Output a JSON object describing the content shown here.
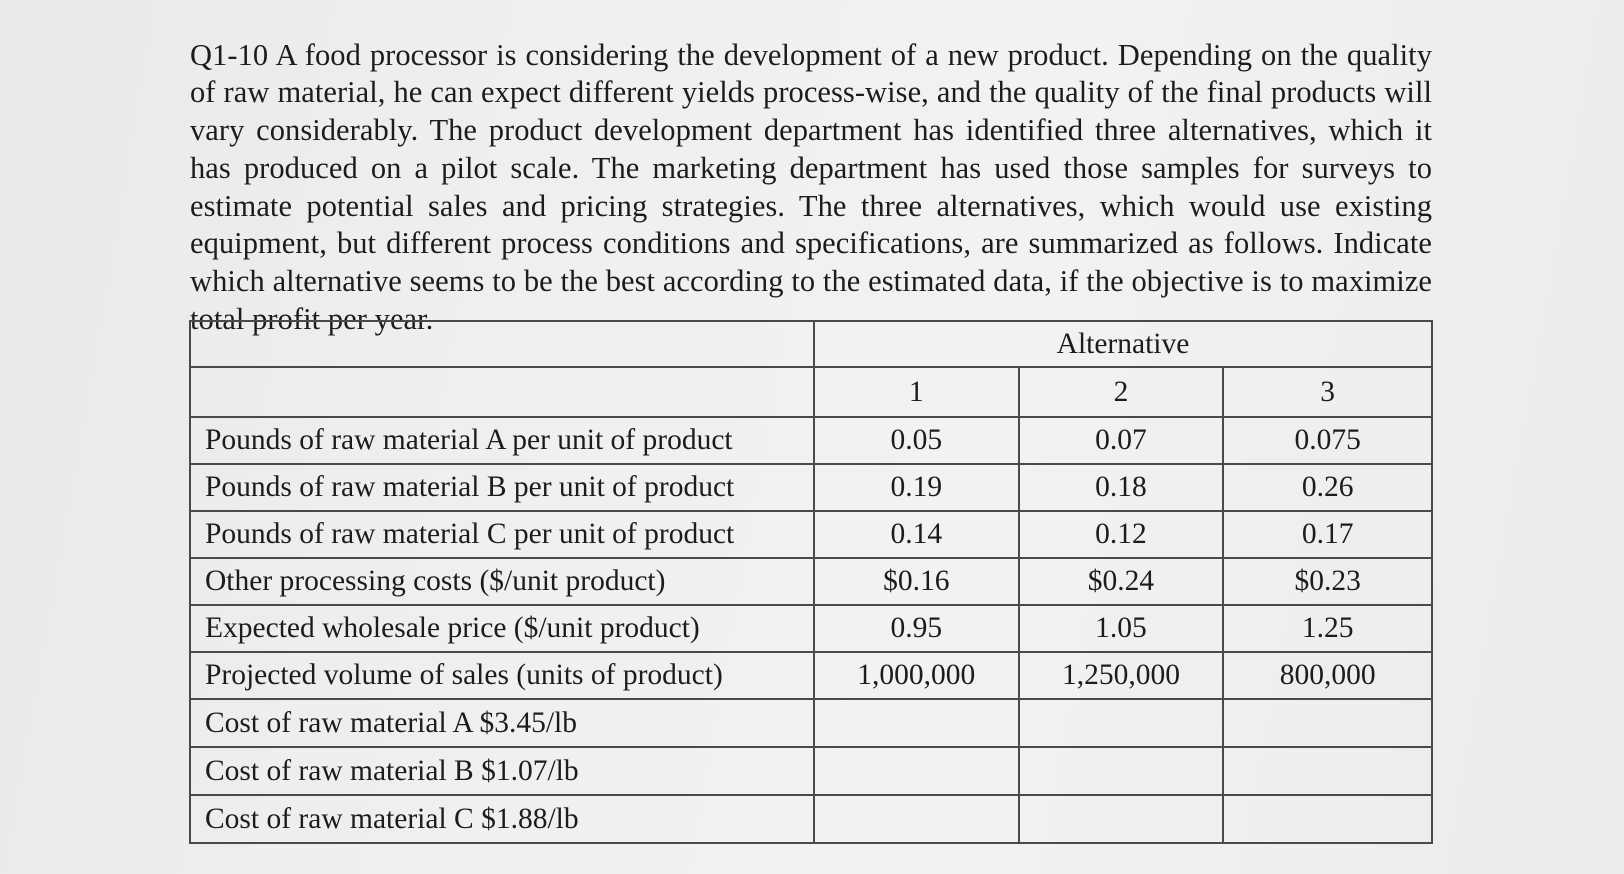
{
  "question": {
    "text": "Q1-10 A food processor is considering the development of a new product. Depending on the quality of raw material, he can expect different yields process-wise, and the quality of the final products will vary considerably. The product development department has identified three alternatives, which it has produced on a pilot scale. The marketing department has used those samples for surveys to estimate potential sales and pricing strategies. The three alternatives, which would use existing equipment, but different process conditions and specifications, are summarized as follows. Indicate which alternative seems to be the best according to the estimated data, if the objective is to maximize total profit per year."
  },
  "table": {
    "group_header": "Alternative",
    "columns": [
      "1",
      "2",
      "3"
    ],
    "rows": [
      {
        "label": "Pounds of raw material A per unit of product",
        "values": [
          "0.05",
          "0.07",
          "0.075"
        ]
      },
      {
        "label": "Pounds of raw material B per unit of product",
        "values": [
          "0.19",
          "0.18",
          "0.26"
        ]
      },
      {
        "label": "Pounds of raw material C per unit of product",
        "values": [
          "0.14",
          "0.12",
          "0.17"
        ]
      },
      {
        "label": "Other processing costs ($/unit product)",
        "values": [
          "$0.16",
          "$0.24",
          "$0.23"
        ]
      },
      {
        "label": "Expected wholesale price ($/unit product)",
        "values": [
          "0.95",
          "1.05",
          "1.25"
        ]
      },
      {
        "label": "Projected volume of sales (units of product)",
        "values": [
          "1,000,000",
          "1,250,000",
          "800,000"
        ]
      },
      {
        "label": "Cost of raw material A $3.45/lb",
        "values": [
          "",
          "",
          ""
        ]
      },
      {
        "label": "Cost of raw material B $1.07/lb",
        "values": [
          "",
          "",
          ""
        ]
      },
      {
        "label": "Cost of raw material C $1.88/lb",
        "values": [
          "",
          "",
          ""
        ]
      }
    ]
  }
}
